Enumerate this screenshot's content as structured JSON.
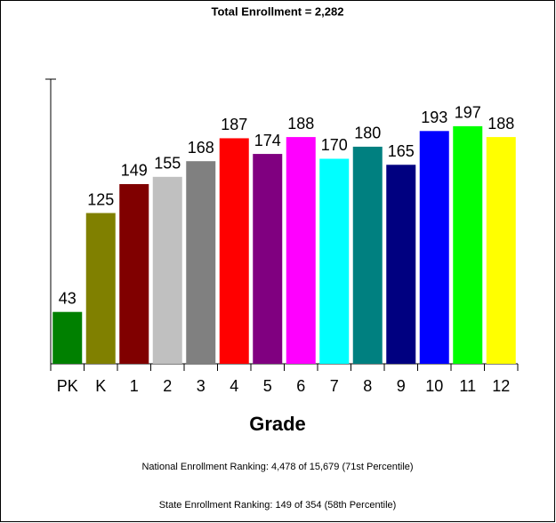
{
  "chart_data": {
    "type": "bar",
    "title": "Total Enrollment = 2,282",
    "categories": [
      "PK",
      "K",
      "1",
      "2",
      "3",
      "4",
      "5",
      "6",
      "7",
      "8",
      "9",
      "10",
      "11",
      "12"
    ],
    "values": [
      43,
      125,
      149,
      155,
      168,
      187,
      174,
      188,
      170,
      180,
      165,
      193,
      197,
      188
    ],
    "colors": [
      "#008000",
      "#808000",
      "#800000",
      "#c0c0c0",
      "#808080",
      "#ff0000",
      "#800080",
      "#ff00ff",
      "#00ffff",
      "#008080",
      "#000080",
      "#0000ff",
      "#00ff00",
      "#ffff00"
    ],
    "xlabel": "Grade",
    "ylim": [
      0,
      236
    ],
    "notes": [
      "National Enrollment Ranking: 4,478 of 15,679 (71st Percentile)",
      "State Enrollment Ranking: 149 of 354 (58th Percentile)"
    ]
  }
}
